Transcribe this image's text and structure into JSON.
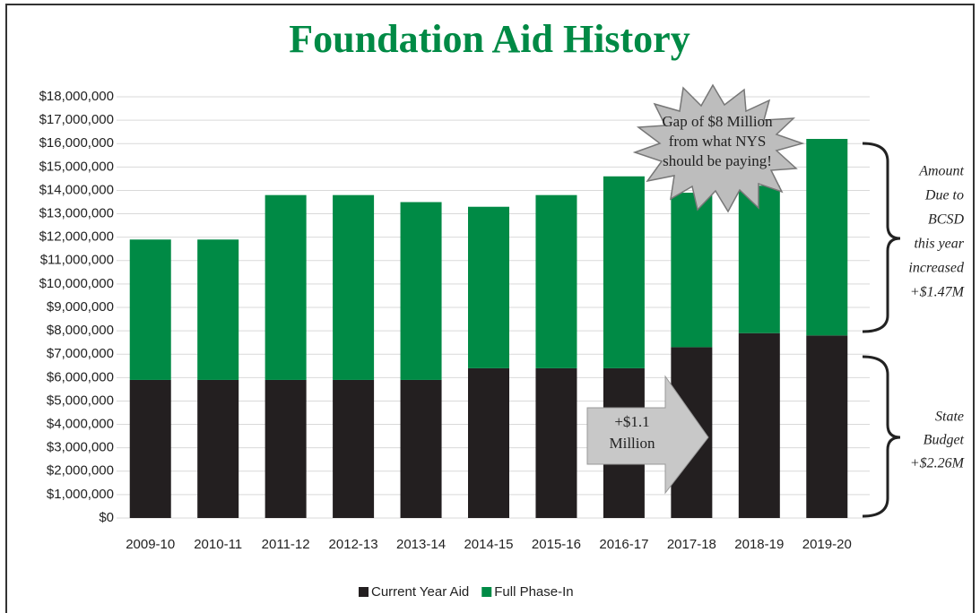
{
  "chart_data": {
    "type": "stacked_bar",
    "title": "Foundation Aid History",
    "categories": [
      "2009-10",
      "2010-11",
      "2011-12",
      "2012-13",
      "2013-14",
      "2014-15",
      "2015-16",
      "2016-17",
      "2017-18",
      "2018-19",
      "2019-20"
    ],
    "series": [
      {
        "name": "Current Year Aid",
        "color": "#231f20",
        "values": [
          5900000,
          5900000,
          5900000,
          5900000,
          5900000,
          6400000,
          6400000,
          6400000,
          7300000,
          7900000,
          7800000
        ]
      },
      {
        "name": "Full Phase-In",
        "color": "#008a45",
        "values": [
          6000000,
          6000000,
          7900000,
          7900000,
          7600000,
          6900000,
          7400000,
          8200000,
          6600000,
          6300000,
          8400000
        ]
      }
    ],
    "ylim": [
      0,
      18000000
    ],
    "yticks": [
      {
        "value": 0,
        "label": "$0"
      },
      {
        "value": 1000000,
        "label": "$1,000,000"
      },
      {
        "value": 2000000,
        "label": "$2,000,000"
      },
      {
        "value": 3000000,
        "label": "$3,000,000"
      },
      {
        "value": 4000000,
        "label": "$4,000,000"
      },
      {
        "value": 5000000,
        "label": "$5,000,000"
      },
      {
        "value": 6000000,
        "label": "$6,000,000"
      },
      {
        "value": 7000000,
        "label": "$7,000,000"
      },
      {
        "value": 8000000,
        "label": "$8,000,000"
      },
      {
        "value": 9000000,
        "label": "$9,000,000"
      },
      {
        "value": 10000000,
        "label": "$10,000,000"
      },
      {
        "value": 11000000,
        "label": "$11,000,000"
      },
      {
        "value": 12000000,
        "label": "$12,000,000"
      },
      {
        "value": 13000000,
        "label": "$13,000,000"
      },
      {
        "value": 14000000,
        "label": "$14,000,000"
      },
      {
        "value": 15000000,
        "label": "$15,000,000"
      },
      {
        "value": 16000000,
        "label": "$16,000,000"
      },
      {
        "value": 17000000,
        "label": "$17,000,000"
      },
      {
        "value": 18000000,
        "label": "$18,000,000"
      }
    ],
    "grid": true,
    "annotations": {
      "gap": [
        "Gap of $8 Million",
        "from what NYS",
        "should be paying!"
      ],
      "increase": [
        "+$1.1",
        "Million"
      ],
      "amount_due": [
        "Amount",
        "Due to",
        "BCSD",
        "this year",
        "increased",
        "+$1.47M"
      ],
      "state_budget": [
        "State",
        "Budget",
        "+$2.26M"
      ]
    }
  }
}
